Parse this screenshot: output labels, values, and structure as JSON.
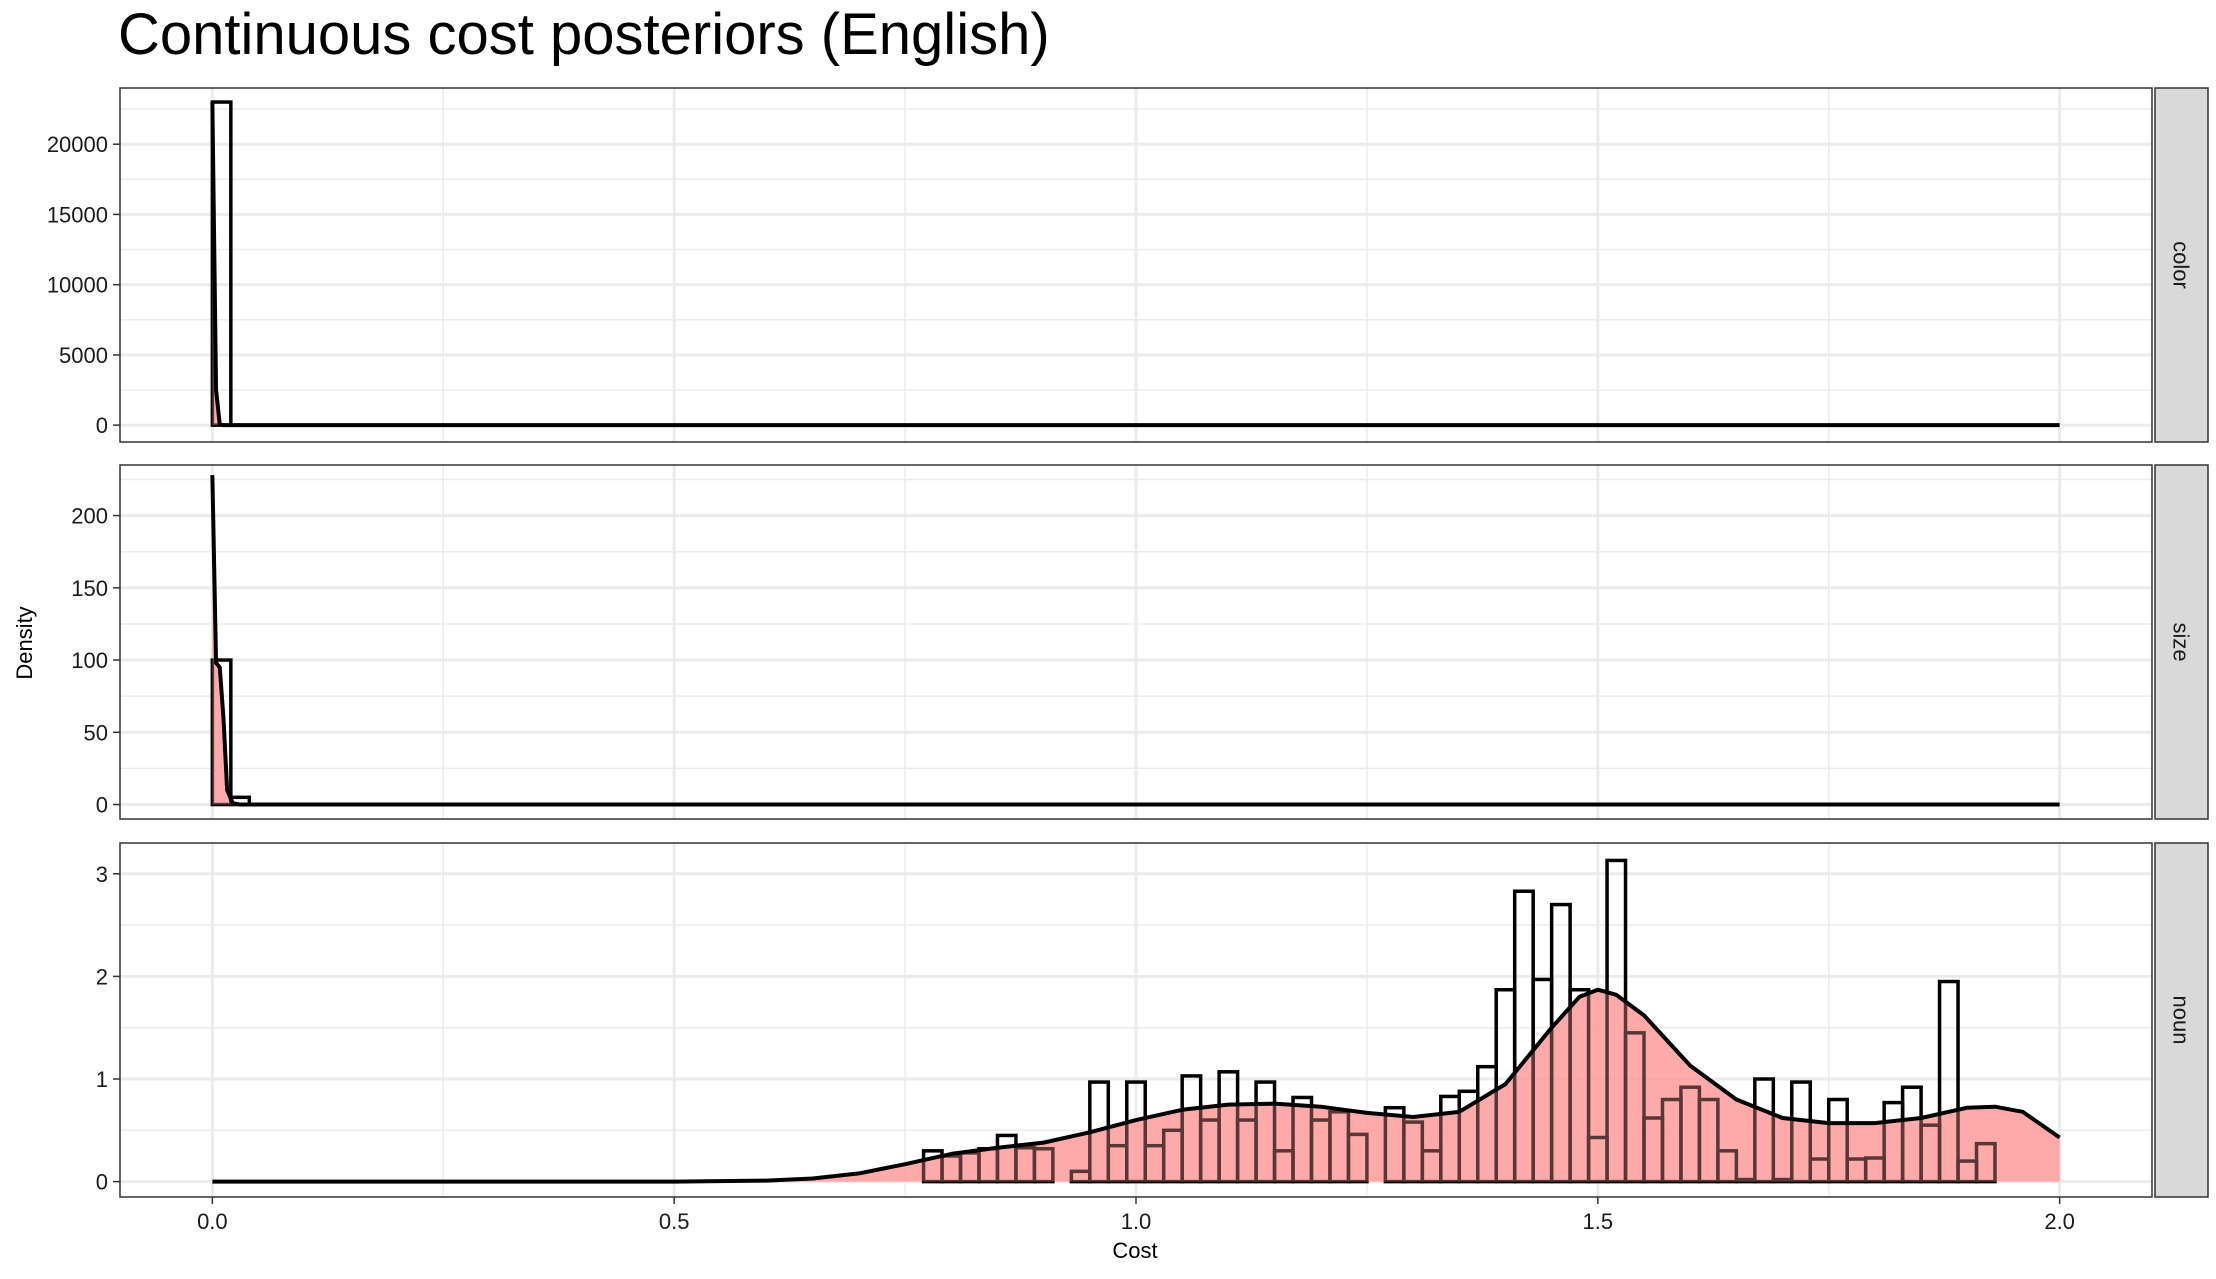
{
  "chart_data": {
    "type": "histogram-density",
    "title": "Continuous cost posteriors (English)",
    "xlabel": "Cost",
    "ylabel": "Density",
    "xlim": [
      -0.1,
      2.1
    ],
    "x_ticks": [
      0.0,
      0.5,
      1.0,
      1.5,
      2.0
    ],
    "x_tick_labels": [
      "0.0",
      "0.5",
      "1.0",
      "1.5",
      "2.0"
    ],
    "colors": {
      "density_fill": "#ff9e9e",
      "line": "#000000",
      "strip": "#d9d9d9",
      "grid": "#ebebeb"
    },
    "bin_width": 0.02,
    "panels": [
      {
        "name": "color",
        "ylim": [
          -1200,
          24000
        ],
        "y_ticks": [
          0,
          5000,
          10000,
          15000,
          20000
        ],
        "y_tick_labels": [
          "0",
          "5000",
          "10000",
          "15000",
          "20000"
        ],
        "hist_start": 0.0,
        "hist": [
          23000
        ],
        "density": {
          "x": [
            0.0,
            0.004,
            0.008,
            0.012,
            0.02,
            2.0
          ],
          "y": [
            23000,
            2500,
            50,
            0,
            0,
            0
          ]
        }
      },
      {
        "name": "size",
        "ylim": [
          -10,
          235
        ],
        "y_ticks": [
          0,
          50,
          100,
          150,
          200
        ],
        "y_tick_labels": [
          "0",
          "50",
          "100",
          "150",
          "200"
        ],
        "hist_start": 0.0,
        "hist": [
          100,
          5
        ],
        "density": {
          "x": [
            0.0,
            0.004,
            0.008,
            0.012,
            0.016,
            0.022,
            0.03,
            2.0
          ],
          "y": [
            228,
            98,
            95,
            60,
            10,
            1,
            0,
            0
          ]
        }
      },
      {
        "name": "noun",
        "ylim": [
          -0.15,
          3.3
        ],
        "y_ticks": [
          0,
          1,
          2,
          3
        ],
        "y_tick_labels": [
          "0",
          "1",
          "2",
          "3"
        ],
        "hist_start": 0.77,
        "hist": [
          0.3,
          0.25,
          0.28,
          0.32,
          0.45,
          0.33,
          0.32,
          0.0,
          0.1,
          0.97,
          0.35,
          0.97,
          0.35,
          0.5,
          1.03,
          0.6,
          1.07,
          0.6,
          0.97,
          0.3,
          0.82,
          0.6,
          0.68,
          0.46,
          0.0,
          0.72,
          0.58,
          0.3,
          0.83,
          0.88,
          1.12,
          1.87,
          2.83,
          1.97,
          2.7,
          1.87,
          0.43,
          3.13,
          1.45,
          0.62,
          0.8,
          0.92,
          0.8,
          0.3,
          0.02,
          1.0,
          0.02,
          0.97,
          0.22,
          0.8,
          0.22,
          0.23,
          0.77,
          0.92,
          0.55,
          1.95,
          0.2,
          0.37
        ]
      }
    ],
    "noun_density": {
      "x": [
        0.0,
        0.5,
        0.6,
        0.65,
        0.7,
        0.75,
        0.8,
        0.85,
        0.9,
        0.95,
        1.0,
        1.05,
        1.1,
        1.15,
        1.2,
        1.25,
        1.3,
        1.35,
        1.4,
        1.45,
        1.48,
        1.5,
        1.52,
        1.55,
        1.6,
        1.65,
        1.7,
        1.75,
        1.8,
        1.85,
        1.9,
        1.93,
        1.96,
        2.0
      ],
      "y": [
        0.0,
        0.0,
        0.01,
        0.03,
        0.08,
        0.17,
        0.27,
        0.33,
        0.38,
        0.48,
        0.6,
        0.7,
        0.75,
        0.76,
        0.73,
        0.67,
        0.63,
        0.68,
        0.95,
        1.5,
        1.8,
        1.87,
        1.82,
        1.62,
        1.13,
        0.8,
        0.62,
        0.57,
        0.57,
        0.62,
        0.72,
        0.73,
        0.68,
        0.43
      ]
    }
  }
}
